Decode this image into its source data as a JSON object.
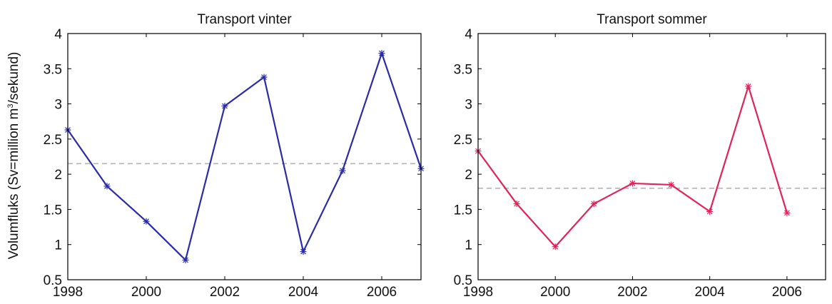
{
  "figure": {
    "ylabel_prefix": "Volumfluks (Sv=million m",
    "ylabel_sup": "3",
    "ylabel_suffix": "/sekund)"
  },
  "chart_data": [
    {
      "type": "line",
      "title": "Transport vinter",
      "xlim": [
        1998,
        2007
      ],
      "ylim": [
        0.5,
        4
      ],
      "xticks": [
        1998,
        2000,
        2002,
        2004,
        2006
      ],
      "yticks": [
        0.5,
        1,
        1.5,
        2,
        2.5,
        3,
        3.5,
        4
      ],
      "x": [
        1998,
        1999,
        2000,
        2001,
        2002,
        2003,
        2004,
        2005,
        2006,
        2007
      ],
      "series": [
        {
          "values": [
            2.63,
            1.83,
            1.33,
            0.78,
            2.97,
            3.38,
            0.9,
            2.05,
            3.72,
            2.08
          ],
          "color": "#2b2ba8"
        }
      ],
      "reference_line": {
        "value": 2.15,
        "style": "dashed",
        "color": "#b4b4b4"
      },
      "grid": false
    },
    {
      "type": "line",
      "title": "Transport sommer",
      "xlim": [
        1998,
        2007
      ],
      "ylim": [
        0.5,
        4
      ],
      "xticks": [
        1998,
        2000,
        2002,
        2004,
        2006
      ],
      "yticks": [
        0.5,
        1,
        1.5,
        2,
        2.5,
        3,
        3.5,
        4
      ],
      "x": [
        1998,
        1999,
        2000,
        2001,
        2002,
        2003,
        2004,
        2005,
        2006
      ],
      "series": [
        {
          "values": [
            2.33,
            1.58,
            0.97,
            1.58,
            1.87,
            1.85,
            1.47,
            3.25,
            1.45
          ],
          "color": "#e0245a"
        }
      ],
      "reference_line": {
        "value": 1.8,
        "style": "dashed",
        "color": "#b4b4b4"
      },
      "grid": false
    }
  ]
}
